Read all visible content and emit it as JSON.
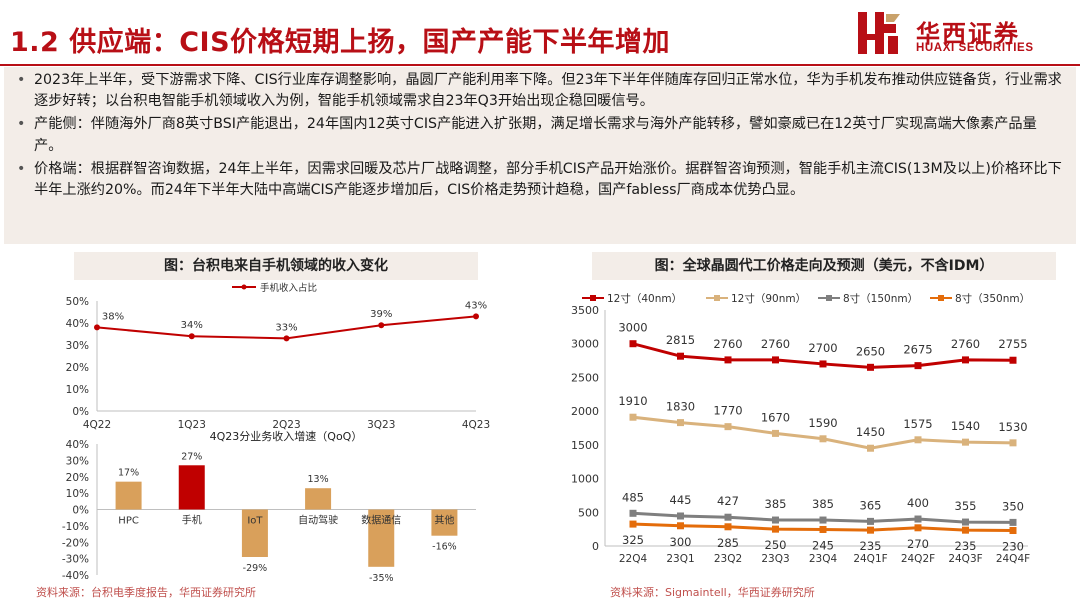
{
  "page": {
    "title": "1.2 供应端：CIS价格短期上扬，国产产能下半年增加",
    "logo_cn": "华西证券",
    "logo_en": "HUAXI SECURITIES",
    "brand_color": "#b80f16"
  },
  "bullets": [
    "2023年上半年，受下游需求下降、CIS行业库存调整影响，晶圆厂产能利用率下降。但23年下半年伴随库存回归正常水位，华为手机发布推动供应链备货，行业需求逐步好转；以台积电智能手机领域收入为例，智能手机领域需求自23年Q3开始出现企稳回暖信号。",
    "产能侧：伴随海外厂商8英寸BSI产能退出，24年国内12英寸CIS产能进入扩张期，满足增长需求与海外产能转移，譬如豪威已在12英寸厂实现高端大像素产品量产。",
    "价格端：根据群智咨询数据，24年上半年，因需求回暖及芯片厂战略调整，部分手机CIS产品开始涨价。据群智咨询预测，智能手机主流CIS(13M及以上)价格环比下半年上涨约20%。而24年下半年大陆中高端CIS产能逐步增加后，CIS价格走势预计趋稳，国产fabless厂商成本优势凸显。"
  ],
  "left_panel": {
    "heading": "图：台积电来自手机领域的收入变化",
    "source": "资料来源：台积电季度报告，华西证券研究所"
  },
  "right_panel": {
    "heading": "图：全球晶圆代工价格走向及预测（美元，不含IDM）",
    "source": "资料来源：Sigmaintell，华西证券研究所"
  },
  "chart_data": [
    {
      "type": "line",
      "title": "",
      "categories": [
        "4Q22",
        "1Q23",
        "2Q23",
        "3Q23",
        "4Q23"
      ],
      "series": [
        {
          "name": "手机收入占比",
          "values": [
            38,
            34,
            33,
            39,
            43
          ],
          "labels": [
            "38%",
            "34%",
            "33%",
            "39%",
            "43%"
          ],
          "color": "#c00000"
        }
      ],
      "ylim": [
        0,
        50
      ],
      "yticks": [
        "0%",
        "10%",
        "20%",
        "30%",
        "40%",
        "50%"
      ],
      "legend": "top",
      "grid": false
    },
    {
      "type": "bar",
      "title": "4Q23分业务收入增速（QoQ）",
      "categories": [
        "HPC",
        "手机",
        "IoT",
        "自动驾驶",
        "数据通信",
        "其他"
      ],
      "values": [
        17,
        27,
        -29,
        13,
        -35,
        -16
      ],
      "labels": [
        "17%",
        "27%",
        "-29%",
        "13%",
        "-35%",
        "-16%"
      ],
      "colors": [
        "#d9a05b",
        "#c00000",
        "#d9a05b",
        "#d9a05b",
        "#d9a05b",
        "#d9a05b"
      ],
      "ylim": [
        -40,
        40
      ],
      "yticks": [
        "-40%",
        "-30%",
        "-20%",
        "-10%",
        "0%",
        "10%",
        "20%",
        "30%",
        "40%"
      ],
      "grid": false
    },
    {
      "type": "line",
      "title": "",
      "categories": [
        "22Q4",
        "23Q1",
        "23Q2",
        "23Q3",
        "23Q4",
        "24Q1F",
        "24Q2F",
        "24Q3F",
        "24Q4F"
      ],
      "series": [
        {
          "name": "12寸（40nm）",
          "values": [
            3000,
            2815,
            2760,
            2760,
            2700,
            2650,
            2675,
            2760,
            2755
          ],
          "color": "#c00000"
        },
        {
          "name": "12寸（90nm）",
          "values": [
            1910,
            1830,
            1770,
            1670,
            1590,
            1450,
            1575,
            1540,
            1530
          ],
          "color": "#d9b27c"
        },
        {
          "name": "8寸（150nm）",
          "values": [
            485,
            445,
            427,
            385,
            385,
            365,
            400,
            355,
            350
          ],
          "color": "#7f7f7f"
        },
        {
          "name": "8寸（350nm）",
          "values": [
            325,
            300,
            285,
            250,
            245,
            235,
            270,
            235,
            230
          ],
          "color": "#e46c0a"
        }
      ],
      "ylim": [
        0,
        3500
      ],
      "yticks": [
        "0",
        "500",
        "1000",
        "1500",
        "2000",
        "2500",
        "3000",
        "3500"
      ],
      "legend": "top",
      "grid": false
    }
  ]
}
